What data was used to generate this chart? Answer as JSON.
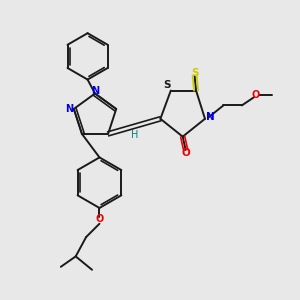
{
  "background_color": "#e8e8e8",
  "bond_color": "#1a1a1a",
  "atom_colors": {
    "N": "#0000ee",
    "O": "#ee0000",
    "S_thioxo": "#cccc00",
    "S_thiazo": "#1a1a1a",
    "H": "#008080",
    "C": "#1a1a1a"
  },
  "figsize": [
    3.0,
    3.0
  ],
  "dpi": 100
}
